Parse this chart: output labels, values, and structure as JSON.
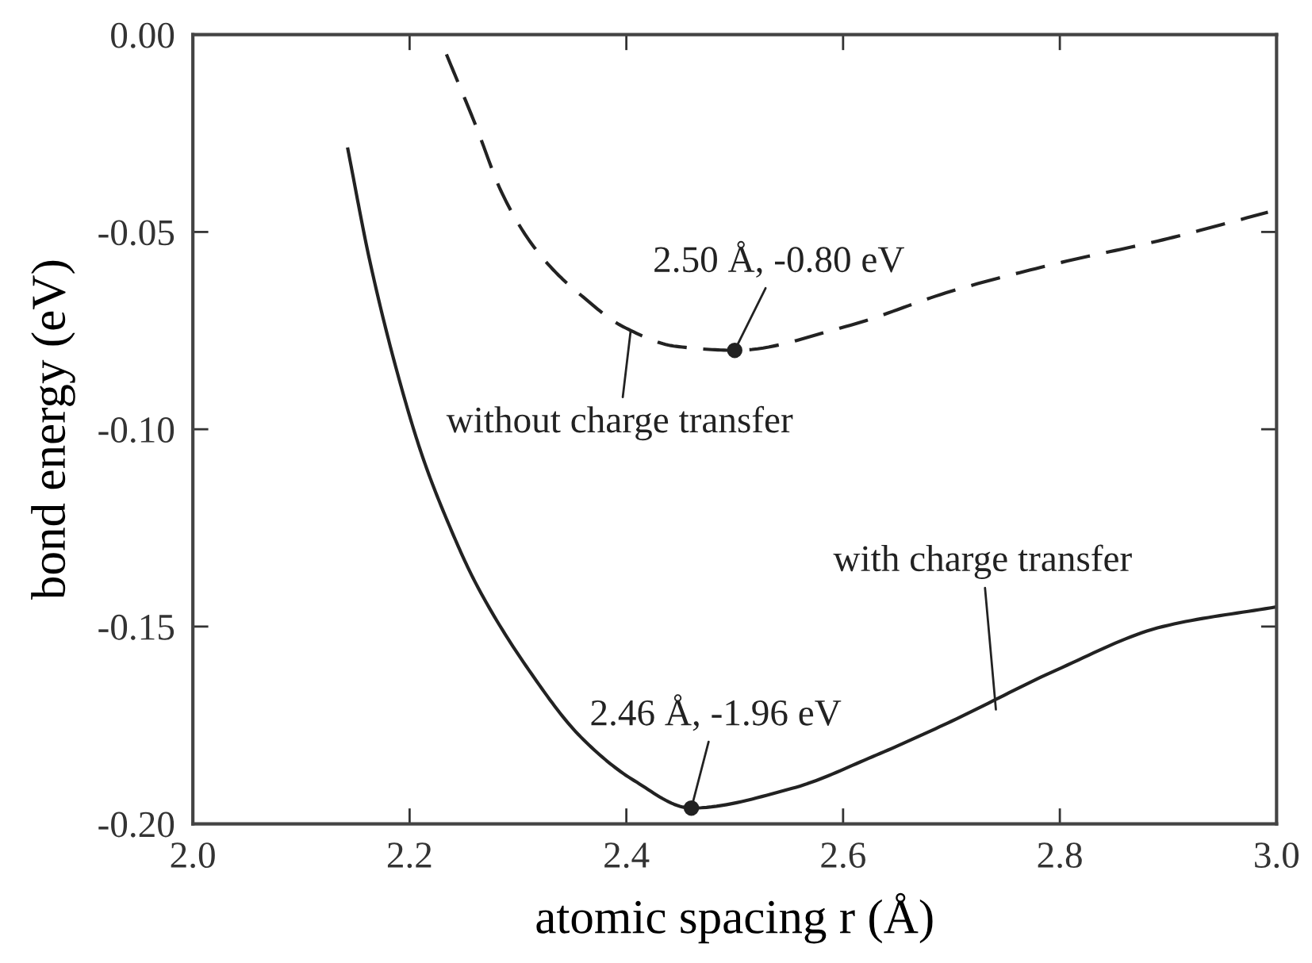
{
  "chart_data": {
    "type": "line",
    "xlabel": "atomic spacing r (Å)",
    "ylabel": "bond energy (eV)",
    "xlim": [
      2.0,
      3.0
    ],
    "ylim": [
      -0.2,
      0.0
    ],
    "xticks": [
      {
        "value": 2.0,
        "label": "2.0"
      },
      2.2,
      2.4,
      2.6,
      2.8,
      {
        "value": 3.0,
        "label": "3.0"
      }
    ],
    "yticks": [
      {
        "value": 0.0,
        "label": "0.00"
      },
      {
        "value": -0.05,
        "label": "-0.05"
      },
      {
        "value": -0.1,
        "label": "-0.10"
      },
      {
        "value": -0.15,
        "label": "-0.15"
      },
      {
        "value": -0.2,
        "label": "-0.20"
      }
    ],
    "grid": false,
    "series": [
      {
        "color": "#222222",
        "line_style": "dashed",
        "x": [
          2.234,
          2.261,
          2.285,
          2.31,
          2.334,
          2.358,
          2.397,
          2.446,
          2.501,
          2.602,
          2.7,
          2.797,
          2.895,
          2.992
        ],
        "values": [
          -0.005,
          -0.023,
          -0.04,
          -0.052,
          -0.06,
          -0.066,
          -0.074,
          -0.079,
          -0.08,
          -0.074,
          -0.065,
          -0.058,
          -0.052,
          -0.045
        ]
      },
      {
        "color": "#222222",
        "line_style": "solid",
        "x": [
          2.143,
          2.163,
          2.188,
          2.212,
          2.236,
          2.261,
          2.31,
          2.358,
          2.407,
          2.46,
          2.553,
          2.627,
          2.7,
          2.797,
          2.895,
          3.0
        ],
        "values": [
          -0.029,
          -0.057,
          -0.085,
          -0.107,
          -0.124,
          -0.139,
          -0.161,
          -0.178,
          -0.189,
          -0.196,
          -0.191,
          -0.183,
          -0.174,
          -0.161,
          -0.15,
          -0.145
        ]
      },
      {
        "type": "scatter",
        "color": "#222222",
        "marker": "circle",
        "x": [
          2.46,
          2.5
        ],
        "values": [
          -0.196,
          -0.08
        ]
      }
    ],
    "annotations": [
      {
        "text": "2.50 Å, -0.80 eV",
        "x": 2.5,
        "y": -0.08
      },
      {
        "text": "2.46 Å, -1.96 eV",
        "x": 2.46,
        "y": -0.196
      },
      {
        "text": "without charge transfer",
        "x": 2.404,
        "y": -0.075
      },
      {
        "text": "with charge transfer",
        "x": 2.741,
        "y": -0.171
      }
    ]
  }
}
